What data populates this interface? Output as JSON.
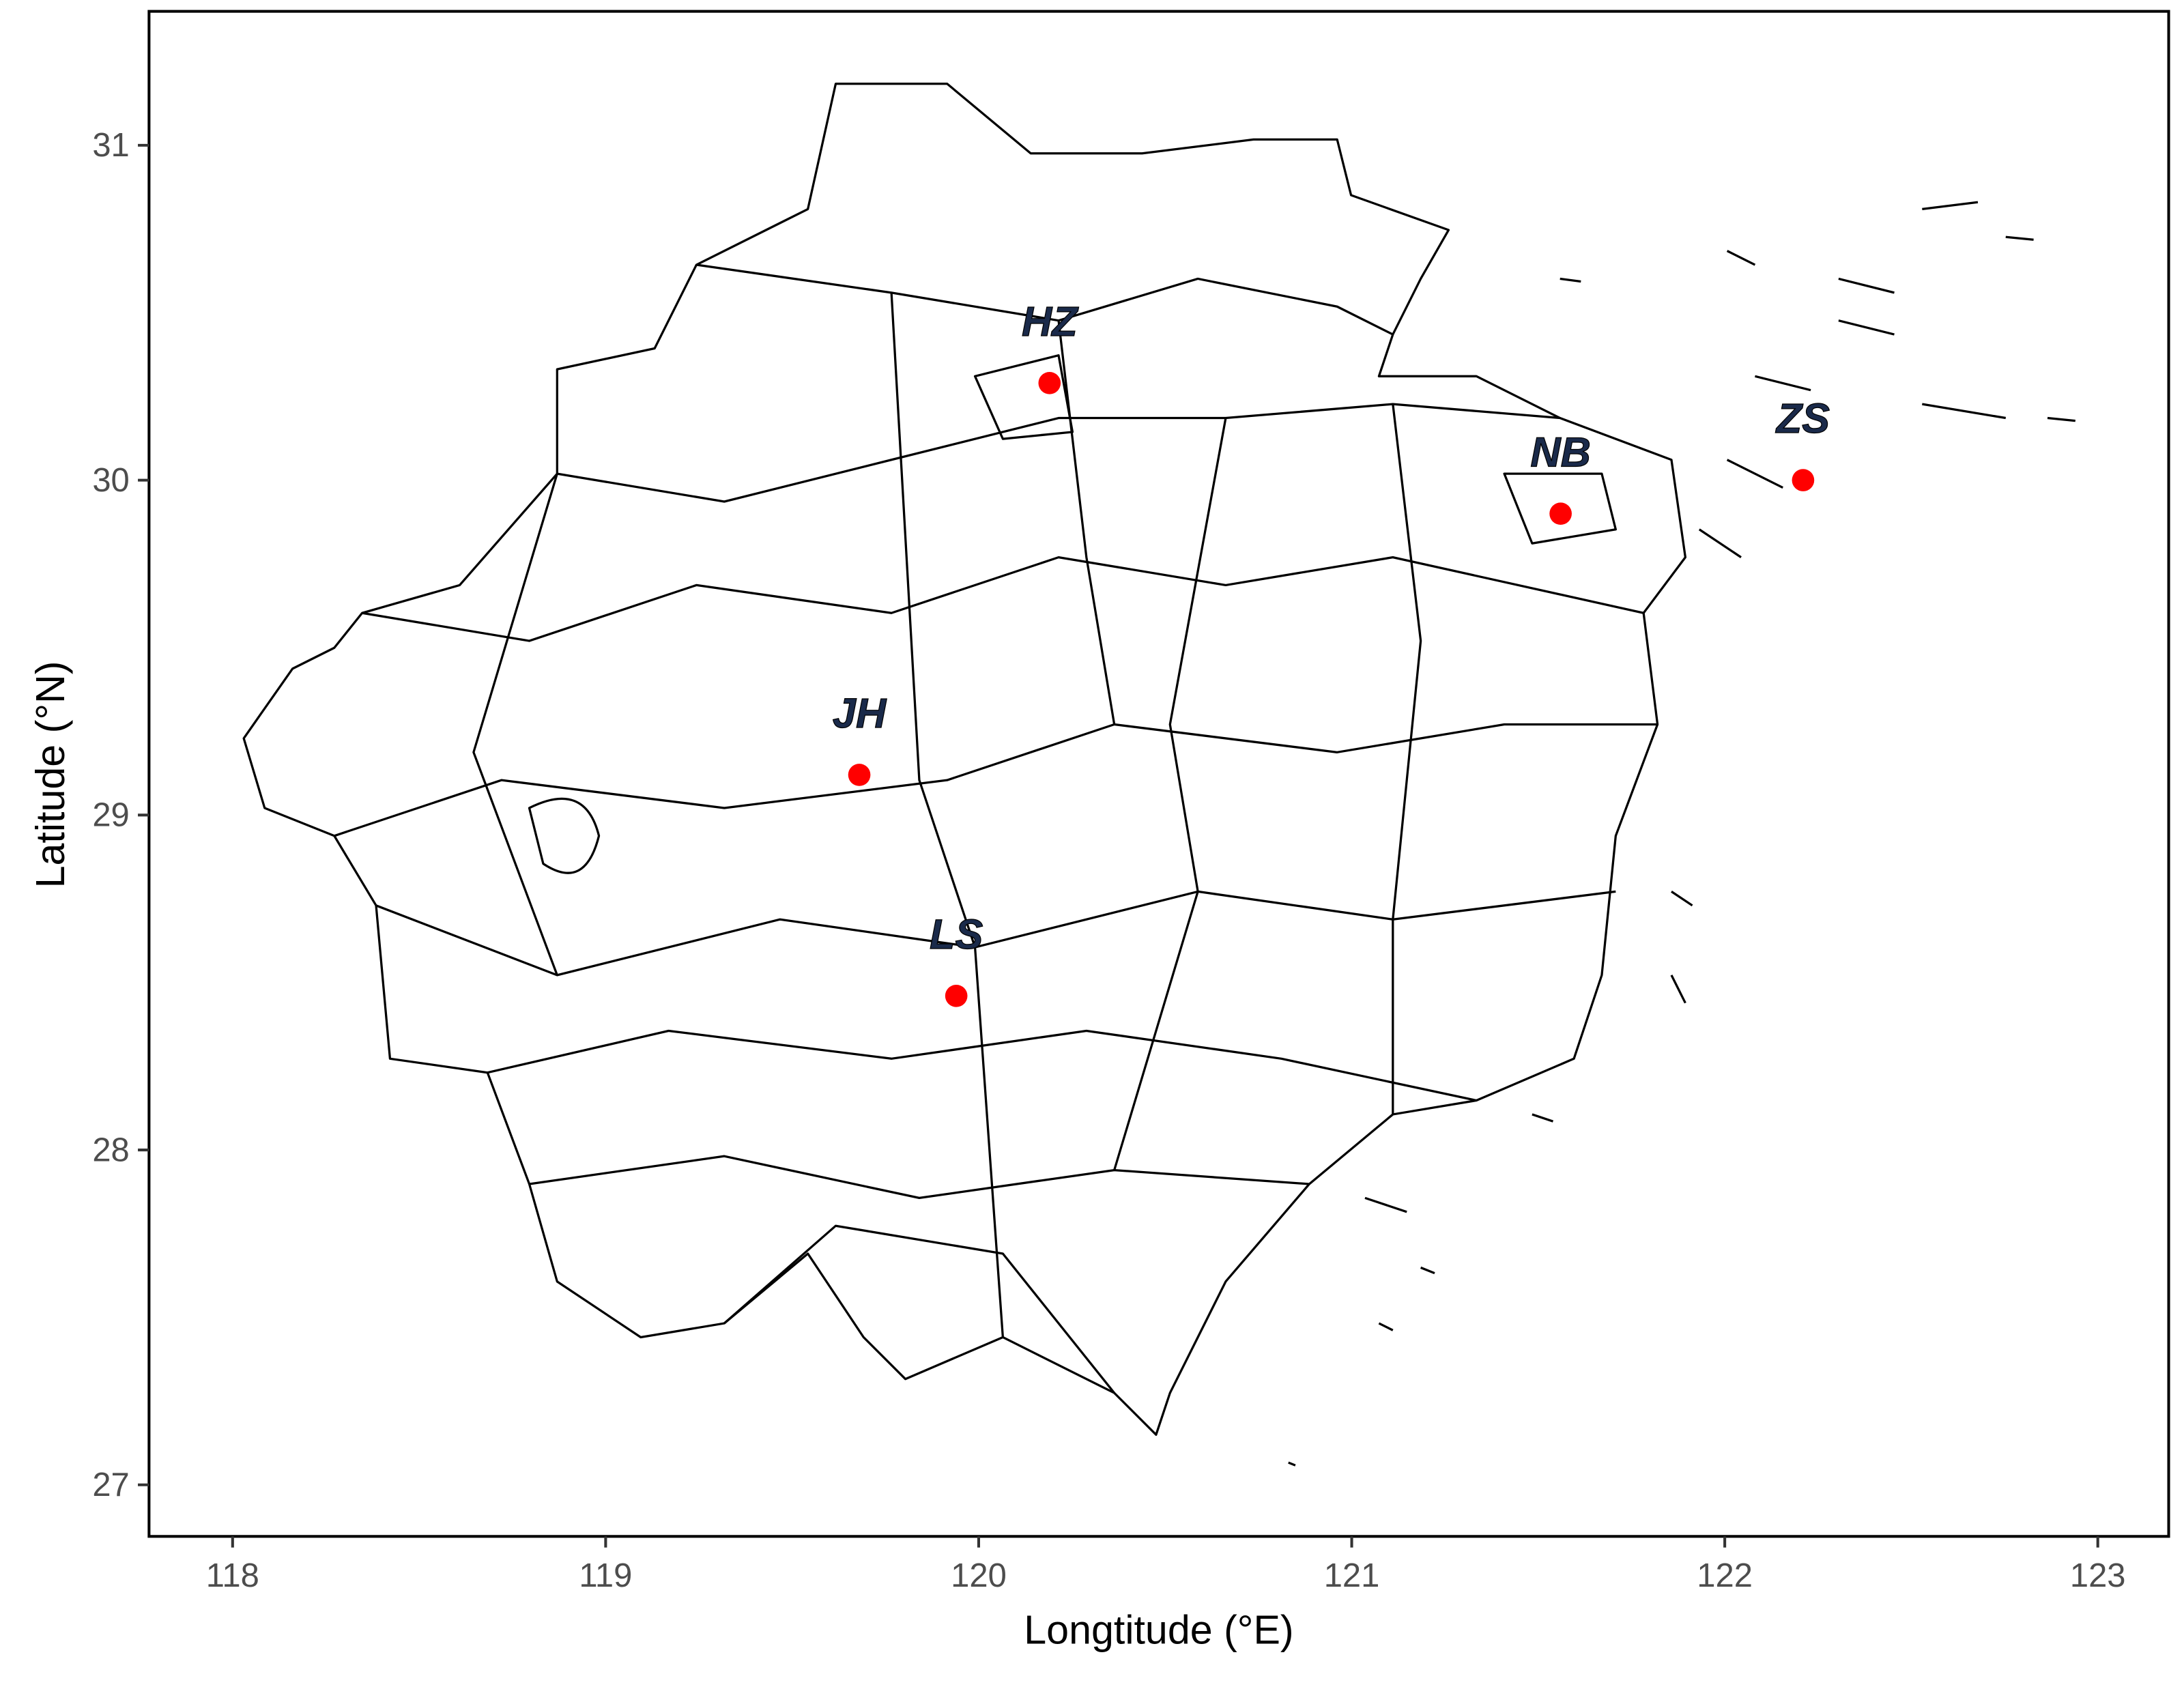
{
  "chart_data": {
    "type": "scatter",
    "x_label": "Longtitude (°E)",
    "y_label": "Latitude (°N)",
    "labels": [
      "HZ",
      "NB",
      "ZS",
      "JH",
      "LS"
    ],
    "x": [
      120.19,
      121.56,
      122.21,
      119.68,
      119.94
    ],
    "values": [
      30.29,
      29.9,
      30.0,
      29.12,
      28.46
    ],
    "color": "#ff0000",
    "xlim": [
      117.776,
      123.19
    ],
    "ylim": [
      26.846,
      31.4
    ],
    "xticks": [
      118,
      119,
      120,
      121,
      122,
      123
    ],
    "yticks": [
      27,
      28,
      29,
      30,
      31
    ],
    "grid": false
  }
}
